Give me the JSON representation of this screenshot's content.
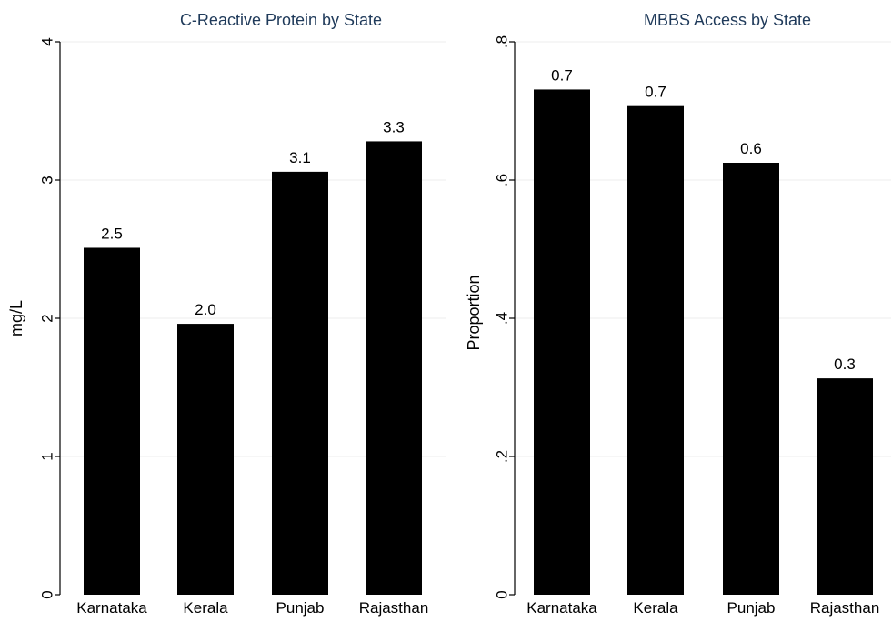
{
  "colors": {
    "bar": "#000000",
    "title": "#1f3a5a",
    "grid": "#ececec",
    "background": "#ffffff"
  },
  "chart_data": [
    {
      "type": "bar",
      "title": "C-Reactive Protein by State",
      "xlabel": "",
      "ylabel": "mg/L",
      "categories": [
        "Karnataka",
        "Kerala",
        "Punjab",
        "Rajasthan"
      ],
      "values": [
        2.51,
        1.96,
        3.06,
        3.28
      ],
      "value_labels": [
        "2.5",
        "2.0",
        "3.1",
        "3.3"
      ],
      "ylim": [
        0,
        4
      ],
      "yticks": [
        0,
        1,
        2,
        3,
        4
      ],
      "ytick_labels": [
        "0",
        "1",
        "2",
        "3",
        "4"
      ],
      "grid": true,
      "legend": "none"
    },
    {
      "type": "bar",
      "title": "MBBS Access by State",
      "xlabel": "",
      "ylabel": "Proportion",
      "categories": [
        "Karnataka",
        "Kerala",
        "Punjab",
        "Rajasthan"
      ],
      "values": [
        0.731,
        0.707,
        0.625,
        0.313
      ],
      "value_labels": [
        "0.7",
        "0.7",
        "0.6",
        "0.3"
      ],
      "ylim": [
        0,
        0.8
      ],
      "yticks": [
        0,
        0.2,
        0.4,
        0.6,
        0.8
      ],
      "ytick_labels": [
        "0",
        ".2",
        ".4",
        ".6",
        ".8"
      ],
      "grid": true,
      "legend": "none"
    }
  ]
}
